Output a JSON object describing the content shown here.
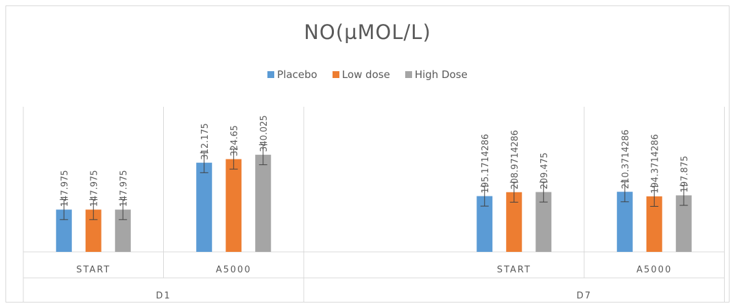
{
  "chart_data": {
    "type": "bar",
    "title": "NO(µMOL/L)",
    "groups": [
      {
        "label": "D1",
        "categories": [
          "START",
          "A5000"
        ]
      },
      {
        "label": "D7",
        "categories": [
          "START",
          "A5000"
        ]
      }
    ],
    "categories": [
      "START",
      "A5000",
      "",
      "START",
      "A5000"
    ],
    "series": [
      {
        "name": "Placebo",
        "color": "#5b9bd5",
        "values": [
          147.975,
          312.175,
          null,
          195.1714286,
          210.3714286
        ],
        "labels": [
          "147.975",
          "312.175",
          "",
          "195.1714286",
          "210.3714286"
        ]
      },
      {
        "name": "Low dose",
        "color": "#ed7d31",
        "values": [
          147.975,
          324.65,
          null,
          208.9714286,
          194.3714286
        ],
        "labels": [
          "147.975",
          "324.65",
          "",
          "208.9714286",
          "194.3714286"
        ]
      },
      {
        "name": "High Dose",
        "color": "#a5a5a5",
        "values": [
          147.975,
          340.025,
          null,
          209.475,
          197.875
        ],
        "labels": [
          "147.975",
          "340.025",
          "",
          "209.475",
          "197.875"
        ]
      }
    ],
    "error": 35,
    "ylim": [
      0,
      500
    ],
    "grid": false,
    "legend_position": "top"
  }
}
